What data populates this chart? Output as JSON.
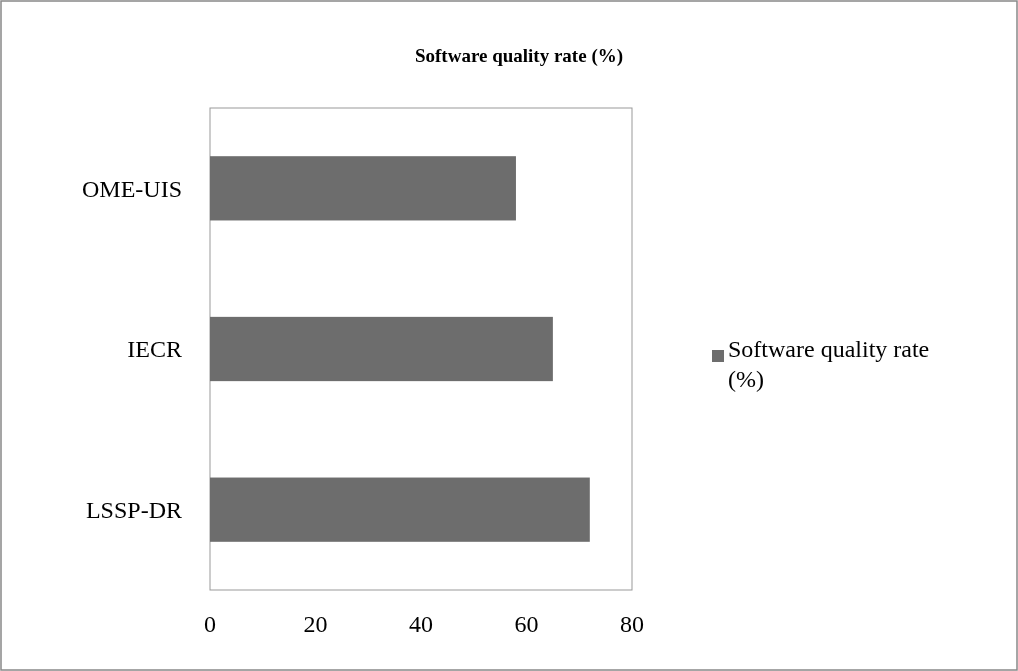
{
  "chart_data": {
    "type": "bar",
    "orientation": "horizontal",
    "title": "Software quality rate (%)",
    "categories": [
      "OME-UIS",
      "IECR",
      "LSSP-DR"
    ],
    "series": [
      {
        "name": "Software quality rate (%)",
        "color": "#6d6d6d",
        "values": [
          58,
          65,
          72
        ]
      }
    ],
    "xlim": [
      0,
      80
    ],
    "xticks": [
      0,
      20,
      40,
      60,
      80
    ],
    "legend": "right"
  }
}
